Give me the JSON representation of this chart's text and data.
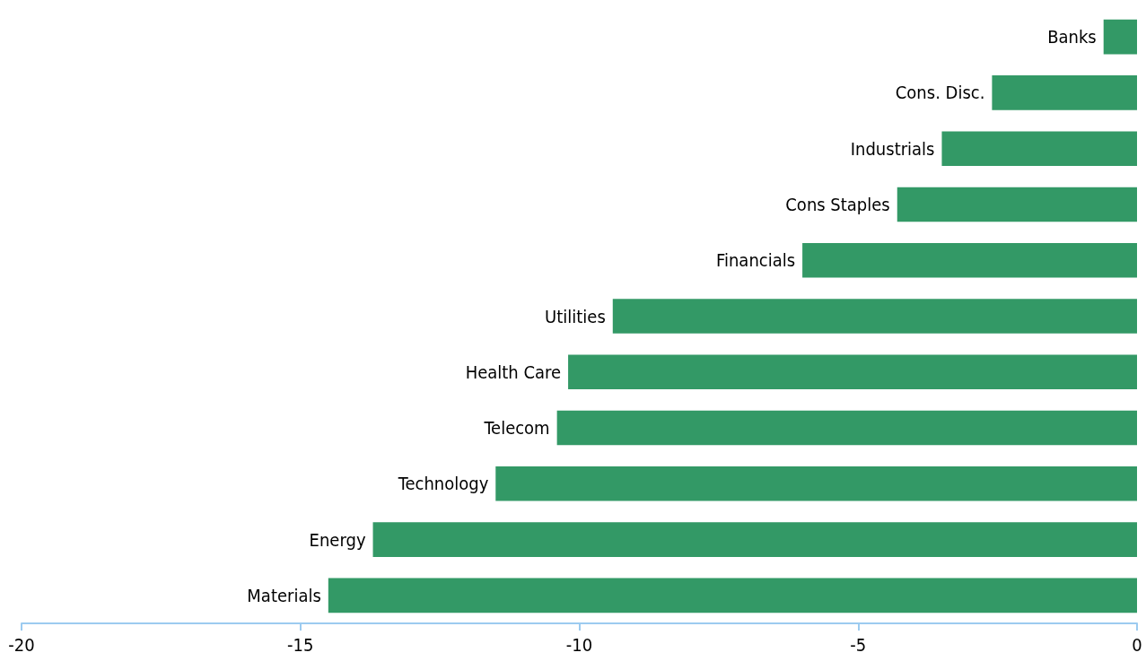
{
  "chart_data": {
    "type": "bar",
    "orientation": "horizontal",
    "categories": [
      "Banks",
      "Cons. Disc.",
      "Industrials",
      "Cons Staples",
      "Financials",
      "Utilities",
      "Health Care",
      "Telecom",
      "Technology",
      "Energy",
      "Materials"
    ],
    "values": [
      -0.6,
      -2.6,
      -3.5,
      -4.3,
      -6.0,
      -9.4,
      -10.2,
      -10.4,
      -11.5,
      -13.7,
      -14.5
    ],
    "color": "#339966",
    "xlim": [
      -20,
      0
    ],
    "xticks": [
      -20,
      -15,
      -10,
      -5,
      0
    ],
    "grid": false
  }
}
